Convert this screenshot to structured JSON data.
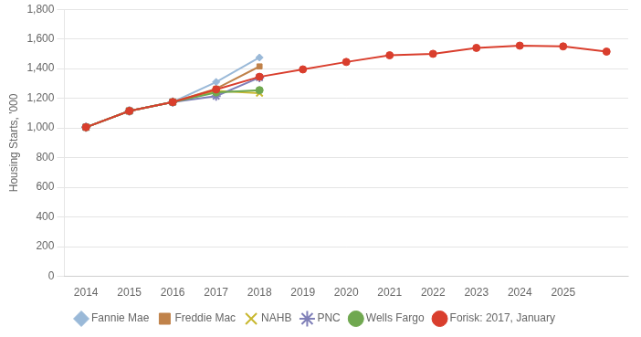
{
  "chart_data": {
    "type": "line",
    "y_label": "Housing Starts, '000",
    "series": [
      {
        "name": "Fannie Mae",
        "color": "#9ab9d8",
        "marker": "diamond",
        "x": [
          2014,
          2015,
          2016,
          2017,
          2018
        ],
        "values": [
          1005,
          1115,
          1175,
          1310,
          1475
        ]
      },
      {
        "name": "Freddie Mac",
        "color": "#c0824a",
        "marker": "square",
        "x": [
          2014,
          2015,
          2016,
          2017,
          2018
        ],
        "values": [
          1005,
          1115,
          1175,
          1265,
          1415
        ]
      },
      {
        "name": "NAHB",
        "color": "#c8b830",
        "marker": "x",
        "x": [
          2014,
          2015,
          2016,
          2017,
          2018
        ],
        "values": [
          1005,
          1115,
          1175,
          1250,
          1235
        ]
      },
      {
        "name": "PNC",
        "color": "#8080b8",
        "marker": "star",
        "x": [
          2014,
          2015,
          2016,
          2017,
          2018
        ],
        "values": [
          1005,
          1115,
          1175,
          1215,
          1340
        ]
      },
      {
        "name": "Wells Fargo",
        "color": "#70a850",
        "marker": "circle",
        "x": [
          2014,
          2015,
          2016,
          2017,
          2018
        ],
        "values": [
          1005,
          1115,
          1175,
          1240,
          1255
        ]
      },
      {
        "name": "Forisk: 2017, January",
        "color": "#d93e2d",
        "marker": "circle",
        "x": [
          2014,
          2015,
          2016,
          2017,
          2018,
          2019,
          2020,
          2021,
          2022,
          2023,
          2024,
          2025,
          2026
        ],
        "values": [
          1005,
          1115,
          1175,
          1260,
          1345,
          1395,
          1445,
          1490,
          1500,
          1540,
          1555,
          1550,
          1515
        ]
      }
    ],
    "xlim": [
      2013.5,
      2026.5
    ],
    "xticks": [
      2014,
      2015,
      2016,
      2017,
      2018,
      2019,
      2020,
      2021,
      2022,
      2023,
      2024,
      2025
    ],
    "ylim": [
      0,
      1800
    ],
    "yticks": [
      0,
      200,
      400,
      600,
      800,
      {
        "value": 1000,
        "label": "1,000"
      },
      {
        "value": 1200,
        "label": "1,200"
      },
      {
        "value": 1400,
        "label": "1,400"
      },
      {
        "value": 1600,
        "label": "1,600"
      },
      {
        "value": 1800,
        "label": "1,800"
      }
    ],
    "grid": "y",
    "legend": "bottom"
  }
}
